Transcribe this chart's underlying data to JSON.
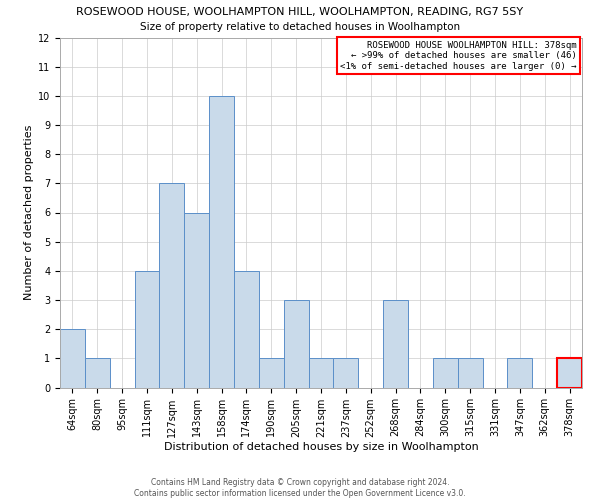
{
  "title": "ROSEWOOD HOUSE, WOOLHAMPTON HILL, WOOLHAMPTON, READING, RG7 5SY",
  "subtitle": "Size of property relative to detached houses in Woolhampton",
  "xlabel": "Distribution of detached houses by size in Woolhampton",
  "ylabel": "Number of detached properties",
  "categories": [
    "64sqm",
    "80sqm",
    "95sqm",
    "111sqm",
    "127sqm",
    "143sqm",
    "158sqm",
    "174sqm",
    "190sqm",
    "205sqm",
    "221sqm",
    "237sqm",
    "252sqm",
    "268sqm",
    "284sqm",
    "300sqm",
    "315sqm",
    "331sqm",
    "347sqm",
    "362sqm",
    "378sqm"
  ],
  "values": [
    2,
    1,
    0,
    4,
    7,
    6,
    10,
    4,
    1,
    3,
    1,
    1,
    0,
    3,
    0,
    1,
    1,
    0,
    1,
    0,
    1
  ],
  "bar_color": "#c9daea",
  "bar_edge_color": "#5b8fc9",
  "highlight_bar_index": 20,
  "highlight_bar_edge_color": "#ff0000",
  "annotation_text": "ROSEWOOD HOUSE WOOLHAMPTON HILL: 378sqm\n← >99% of detached houses are smaller (46)\n<1% of semi-detached houses are larger (0) →",
  "annotation_box_color": "#ffffff",
  "annotation_box_edge_color": "#ff0000",
  "ylim": [
    0,
    12
  ],
  "yticks": [
    0,
    1,
    2,
    3,
    4,
    5,
    6,
    7,
    8,
    9,
    10,
    11,
    12
  ],
  "footnote": "Contains HM Land Registry data © Crown copyright and database right 2024.\nContains public sector information licensed under the Open Government Licence v3.0.",
  "grid_color": "#cccccc",
  "background_color": "#ffffff",
  "title_fontsize": 8.0,
  "subtitle_fontsize": 7.5,
  "ylabel_fontsize": 8,
  "xlabel_fontsize": 8,
  "tick_fontsize": 7,
  "annotation_fontsize": 6.5,
  "footnote_fontsize": 5.5
}
